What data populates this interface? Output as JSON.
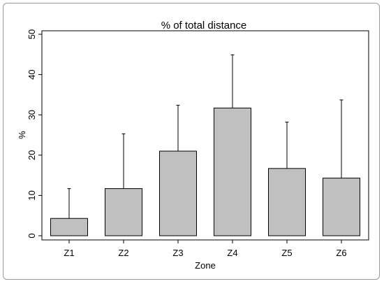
{
  "chart_data": {
    "type": "bar",
    "title": "% of total distance",
    "xlabel": "Zone",
    "ylabel": "%",
    "categories": [
      "Z1",
      "Z2",
      "Z3",
      "Z4",
      "Z5",
      "Z6"
    ],
    "values": [
      4.3,
      11.7,
      21.0,
      31.7,
      16.7,
      14.3
    ],
    "error_upper": [
      11.7,
      25.3,
      32.4,
      44.9,
      28.2,
      33.7
    ],
    "yticks": [
      0,
      10,
      20,
      30,
      40,
      50
    ],
    "ylim": [
      0,
      50
    ],
    "bar_color": "#c0c0c0",
    "edge_color": "#000000",
    "grid": false,
    "legend": "none"
  }
}
